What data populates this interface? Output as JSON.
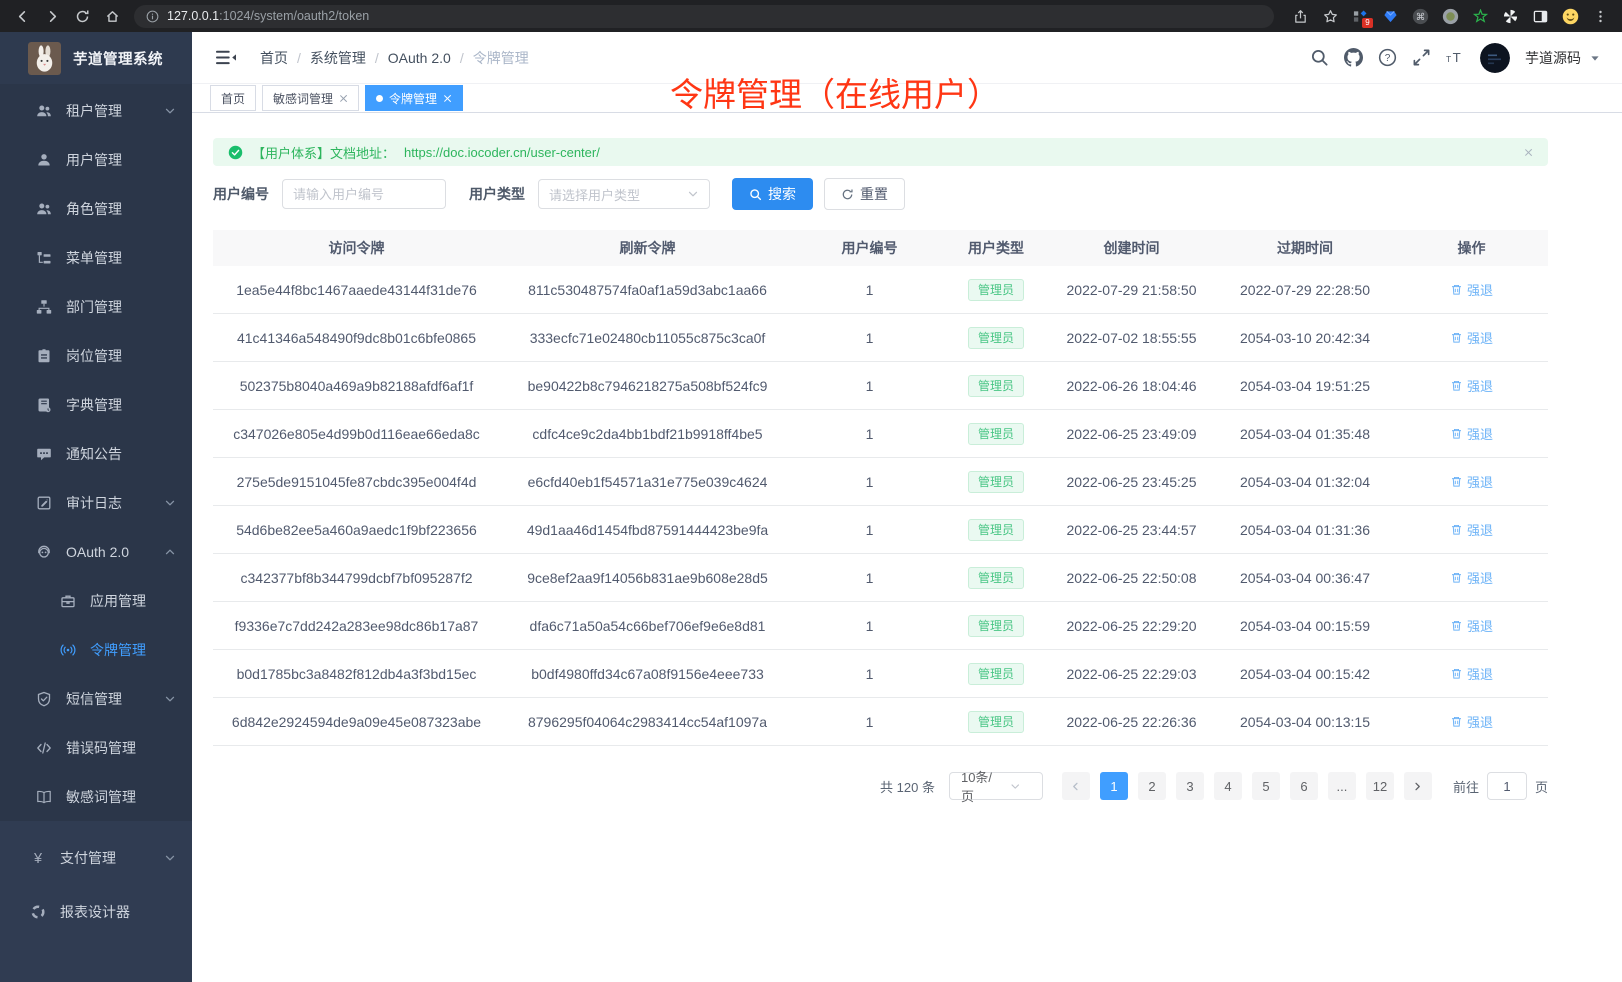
{
  "browser": {
    "url_host": "127.0.0.1",
    "url_rest": ":1024/system/oauth2/token",
    "extension_badge": "9"
  },
  "app": {
    "title": "芋道管理系统",
    "annotation": "令牌管理（在线用户）"
  },
  "header": {
    "breadcrumb": [
      "首页",
      "系统管理",
      "OAuth 2.0",
      "令牌管理"
    ],
    "separator": "/",
    "username": "芋道源码"
  },
  "tabs": [
    {
      "label": "首页",
      "active": false,
      "closable": false
    },
    {
      "label": "敏感词管理",
      "active": false,
      "closable": true
    },
    {
      "label": "令牌管理",
      "active": true,
      "closable": true
    }
  ],
  "sidebar": {
    "items": [
      {
        "label": "租户管理",
        "icon": "users",
        "arrow": "down"
      },
      {
        "label": "用户管理",
        "icon": "user"
      },
      {
        "label": "角色管理",
        "icon": "users"
      },
      {
        "label": "菜单管理",
        "icon": "menu-tree"
      },
      {
        "label": "部门管理",
        "icon": "org-chart"
      },
      {
        "label": "岗位管理",
        "icon": "id-badge"
      },
      {
        "label": "字典管理",
        "icon": "dictionary"
      },
      {
        "label": "通知公告",
        "icon": "announcement"
      },
      {
        "label": "审计日志",
        "icon": "audit-log",
        "arrow": "down"
      },
      {
        "label": "OAuth 2.0",
        "icon": "robot",
        "arrow": "up"
      },
      {
        "label": "应用管理",
        "icon": "briefcase",
        "child": true
      },
      {
        "label": "令牌管理",
        "icon": "broadcast",
        "child": true,
        "active": true
      },
      {
        "label": "短信管理",
        "icon": "shield",
        "arrow": "down"
      },
      {
        "label": "错误码管理",
        "icon": "code"
      },
      {
        "label": "敏感词管理",
        "icon": "book-open"
      }
    ],
    "bottom_items": [
      {
        "label": "支付管理",
        "icon": "yen",
        "arrow": "down"
      },
      {
        "label": "报表设计器",
        "icon": "report"
      }
    ]
  },
  "alert": {
    "text": "【用户体系】文档地址：",
    "link": "https://doc.iocoder.cn/user-center/"
  },
  "filters": {
    "user_id_label": "用户编号",
    "user_id_placeholder": "请输入用户编号",
    "user_type_label": "用户类型",
    "user_type_placeholder": "请选择用户类型",
    "search_label": "搜索",
    "reset_label": "重置"
  },
  "table": {
    "columns": [
      "访问令牌",
      "刷新令牌",
      "用户编号",
      "用户类型",
      "创建时间",
      "过期时间",
      "操作"
    ],
    "user_type_badge": "管理员",
    "action_label": "强退",
    "rows": [
      {
        "access_token": "1ea5e44f8bc1467aaede43144f31de76",
        "refresh_token": "811c530487574fa0af1a59d3abc1aa66",
        "user_id": "1",
        "created_at": "2022-07-29 21:58:50",
        "expires_at": "2022-07-29 22:28:50"
      },
      {
        "access_token": "41c41346a548490f9dc8b01c6bfe0865",
        "refresh_token": "333ecfc71e02480cb11055c875c3ca0f",
        "user_id": "1",
        "created_at": "2022-07-02 18:55:55",
        "expires_at": "2054-03-10 20:42:34"
      },
      {
        "access_token": "502375b8040a469a9b82188afdf6af1f",
        "refresh_token": "be90422b8c7946218275a508bf524fc9",
        "user_id": "1",
        "created_at": "2022-06-26 18:04:46",
        "expires_at": "2054-03-04 19:51:25"
      },
      {
        "access_token": "c347026e805e4d99b0d116eae66eda8c",
        "refresh_token": "cdfc4ce9c2da4bb1bdf21b9918ff4be5",
        "user_id": "1",
        "created_at": "2022-06-25 23:49:09",
        "expires_at": "2054-03-04 01:35:48"
      },
      {
        "access_token": "275e5de9151045fe87cbdc395e004f4d",
        "refresh_token": "e6cfd40eb1f54571a31e775e039c4624",
        "user_id": "1",
        "created_at": "2022-06-25 23:45:25",
        "expires_at": "2054-03-04 01:32:04"
      },
      {
        "access_token": "54d6be82ee5a460a9aedc1f9bf223656",
        "refresh_token": "49d1aa46d1454fbd87591444423be9fa",
        "user_id": "1",
        "created_at": "2022-06-25 23:44:57",
        "expires_at": "2054-03-04 01:31:36"
      },
      {
        "access_token": "c342377bf8b344799dcbf7bf095287f2",
        "refresh_token": "9ce8ef2aa9f14056b831ae9b608e28d5",
        "user_id": "1",
        "created_at": "2022-06-25 22:50:08",
        "expires_at": "2054-03-04 00:36:47"
      },
      {
        "access_token": "f9336e7c7dd242a283ee98dc86b17a87",
        "refresh_token": "dfa6c71a50a54c66bef706ef9e6e8d81",
        "user_id": "1",
        "created_at": "2022-06-25 22:29:20",
        "expires_at": "2054-03-04 00:15:59"
      },
      {
        "access_token": "b0d1785bc3a8482f812db4a3f3bd15ec",
        "refresh_token": "b0df4980ffd34c67a08f9156e4eee733",
        "user_id": "1",
        "created_at": "2022-06-25 22:29:03",
        "expires_at": "2054-03-04 00:15:42"
      },
      {
        "access_token": "6d842e2924594de9a09e45e087323abe",
        "refresh_token": "8796295f04064c2983414cc54af1097a",
        "user_id": "1",
        "created_at": "2022-06-25 22:26:36",
        "expires_at": "2054-03-04 00:13:15"
      }
    ]
  },
  "pagination": {
    "total_label": "共 120 条",
    "page_size": "10条/页",
    "pages": [
      "1",
      "2",
      "3",
      "4",
      "5",
      "6",
      "...",
      "12"
    ],
    "active_page": "1",
    "goto_label": "前往",
    "goto_value": "1",
    "goto_suffix": "页"
  },
  "colors": {
    "primary": "#409eff",
    "button_blue": "#2d8cf0",
    "success_green": "#2db55d",
    "annotation_red": "#ff3614",
    "sidebar_bg": "#2b3649"
  }
}
